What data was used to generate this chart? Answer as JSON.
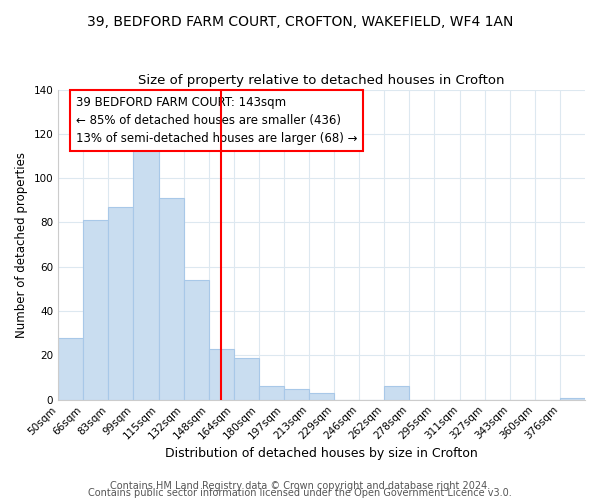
{
  "title": "39, BEDFORD FARM COURT, CROFTON, WAKEFIELD, WF4 1AN",
  "subtitle": "Size of property relative to detached houses in Crofton",
  "xlabel": "Distribution of detached houses by size in Crofton",
  "ylabel": "Number of detached properties",
  "bar_labels": [
    "50sqm",
    "66sqm",
    "83sqm",
    "99sqm",
    "115sqm",
    "132sqm",
    "148sqm",
    "164sqm",
    "180sqm",
    "197sqm",
    "213sqm",
    "229sqm",
    "246sqm",
    "262sqm",
    "278sqm",
    "295sqm",
    "311sqm",
    "327sqm",
    "343sqm",
    "360sqm",
    "376sqm"
  ],
  "bar_values": [
    28,
    81,
    87,
    113,
    91,
    54,
    23,
    19,
    6,
    5,
    3,
    0,
    0,
    6,
    0,
    0,
    0,
    0,
    0,
    0,
    1
  ],
  "bar_color": "#c9ddf0",
  "bar_edgecolor": "#a8c8e8",
  "vline_x": 6,
  "vline_color": "red",
  "annotation_text": "39 BEDFORD FARM COURT: 143sqm\n← 85% of detached houses are smaller (436)\n13% of semi-detached houses are larger (68) →",
  "annotation_box_edgecolor": "red",
  "annotation_box_facecolor": "white",
  "ylim": [
    0,
    140
  ],
  "yticks": [
    0,
    20,
    40,
    60,
    80,
    100,
    120,
    140
  ],
  "footer_line1": "Contains HM Land Registry data © Crown copyright and database right 2024.",
  "footer_line2": "Contains public sector information licensed under the Open Government Licence v3.0.",
  "title_fontsize": 10,
  "subtitle_fontsize": 9.5,
  "xlabel_fontsize": 9,
  "ylabel_fontsize": 8.5,
  "annotation_fontsize": 8.5,
  "tick_fontsize": 7.5,
  "footer_fontsize": 7,
  "background_color": "#ffffff",
  "grid_color": "#dde8f0"
}
